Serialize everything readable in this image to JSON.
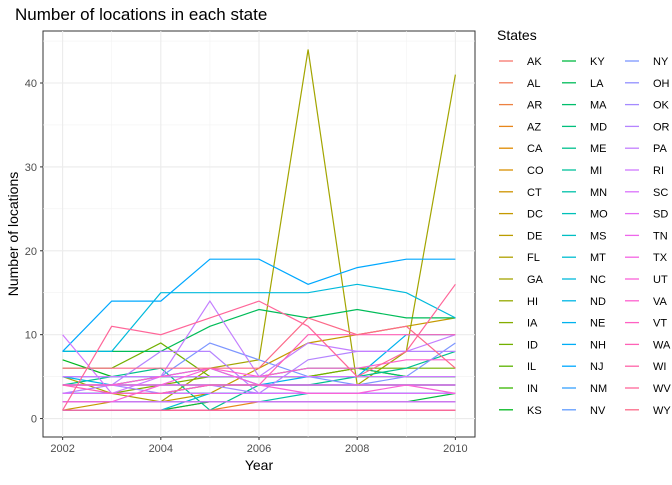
{
  "chart_data": {
    "type": "line",
    "title": "Number of locations in each state",
    "xlabel": "Year",
    "ylabel": "Number of locations",
    "xlim": [
      2002,
      2010
    ],
    "ylim": [
      0,
      44
    ],
    "x_ticks": [
      2002,
      2004,
      2006,
      2008,
      2010
    ],
    "y_ticks": [
      0,
      10,
      20,
      30,
      40
    ],
    "grid": true,
    "legend_title": "States",
    "legend_position": "right",
    "x": [
      2002,
      2003,
      2004,
      2005,
      2006,
      2007,
      2008,
      2009,
      2010
    ],
    "series": [
      {
        "name": "AK",
        "color": "#F8766D",
        "values": [
          1,
          1,
          1,
          1,
          1,
          1,
          1,
          1,
          1
        ]
      },
      {
        "name": "AL",
        "color": "#F37B59",
        "values": [
          1,
          1,
          1,
          1,
          1,
          1,
          1,
          1,
          1
        ]
      },
      {
        "name": "AR",
        "color": "#ED8141",
        "values": [
          1,
          1,
          1,
          1,
          1,
          1,
          1,
          1,
          1
        ]
      },
      {
        "name": "AZ",
        "color": "#E7861B",
        "values": [
          1,
          1,
          1,
          1,
          2,
          2,
          2,
          2,
          2
        ]
      },
      {
        "name": "CA",
        "color": "#E08B00",
        "values": [
          1,
          1,
          1,
          2,
          2,
          2,
          2,
          2,
          2
        ]
      },
      {
        "name": "CO",
        "color": "#D89000",
        "values": [
          1,
          1,
          1,
          1,
          1,
          1,
          1,
          1,
          1
        ]
      },
      {
        "name": "CT",
        "color": "#CF9400",
        "values": [
          1,
          1,
          1,
          1,
          1,
          1,
          1,
          1,
          1
        ]
      },
      {
        "name": "DC",
        "color": "#C59900",
        "values": [
          1,
          2,
          2,
          3,
          6,
          9,
          10,
          11,
          12
        ]
      },
      {
        "name": "DE",
        "color": "#BB9D00",
        "values": [
          1,
          1,
          1,
          1,
          1,
          1,
          1,
          1,
          1
        ]
      },
      {
        "name": "FL",
        "color": "#AFA100",
        "values": [
          5,
          3,
          2,
          2,
          2,
          2,
          2,
          2,
          2
        ]
      },
      {
        "name": "GA",
        "color": "#A3A500",
        "values": [
          2,
          2,
          2,
          6,
          7,
          44,
          4,
          8,
          41
        ]
      },
      {
        "name": "HI",
        "color": "#95A900",
        "values": [
          2,
          2,
          2,
          2,
          2,
          2,
          2,
          2,
          2
        ]
      },
      {
        "name": "IA",
        "color": "#85AD00",
        "values": [
          3,
          3,
          4,
          5,
          5,
          5,
          6,
          5,
          5
        ]
      },
      {
        "name": "ID",
        "color": "#72B000",
        "values": [
          6,
          6,
          9,
          5,
          5,
          5,
          6,
          6,
          6
        ]
      },
      {
        "name": "IL",
        "color": "#5BB300",
        "values": [
          4,
          4,
          4,
          4,
          4,
          4,
          4,
          4,
          4
        ]
      },
      {
        "name": "IN",
        "color": "#39B600",
        "values": [
          3,
          3,
          3,
          3,
          3,
          3,
          3,
          3,
          3
        ]
      },
      {
        "name": "KS",
        "color": "#00B81F",
        "values": [
          7,
          5,
          5,
          5,
          5,
          5,
          5,
          5,
          5
        ]
      },
      {
        "name": "KY",
        "color": "#00BA42",
        "values": [
          1,
          1,
          1,
          2,
          2,
          2,
          2,
          2,
          3
        ]
      },
      {
        "name": "LA",
        "color": "#00BC59",
        "values": [
          8,
          8,
          8,
          11,
          13,
          12,
          13,
          12,
          12
        ]
      },
      {
        "name": "MA",
        "color": "#00BE6C",
        "values": [
          4,
          4,
          5,
          5,
          5,
          6,
          6,
          5,
          5
        ]
      },
      {
        "name": "MD",
        "color": "#00BF7D",
        "values": [
          3,
          3,
          3,
          3,
          3,
          3,
          3,
          3,
          3
        ]
      },
      {
        "name": "ME",
        "color": "#00C08D",
        "values": [
          4,
          5,
          6,
          1,
          4,
          4,
          5,
          6,
          8
        ]
      },
      {
        "name": "MI",
        "color": "#00C19C",
        "values": [
          2,
          2,
          2,
          2,
          2,
          2,
          2,
          2,
          2
        ]
      },
      {
        "name": "MN",
        "color": "#00C1AA",
        "values": [
          2,
          2,
          2,
          2,
          2,
          3,
          3,
          3,
          3
        ]
      },
      {
        "name": "MO",
        "color": "#00C0B8",
        "values": [
          3,
          3,
          3,
          4,
          4,
          4,
          4,
          4,
          4
        ]
      },
      {
        "name": "MS",
        "color": "#00BFC4",
        "values": [
          3,
          3,
          3,
          3,
          3,
          3,
          3,
          3,
          3
        ]
      },
      {
        "name": "MT",
        "color": "#00BDD0",
        "values": [
          1,
          1,
          1,
          3,
          3,
          3,
          3,
          3,
          3
        ]
      },
      {
        "name": "NC",
        "color": "#00BADB",
        "values": [
          8,
          8,
          15,
          15,
          15,
          15,
          16,
          15,
          12
        ]
      },
      {
        "name": "ND",
        "color": "#00B6E5",
        "values": [
          5,
          4,
          4,
          4,
          4,
          4,
          4,
          4,
          4
        ]
      },
      {
        "name": "NE",
        "color": "#00B2EE",
        "values": [
          5,
          5,
          5,
          6,
          4,
          5,
          5,
          10,
          10
        ]
      },
      {
        "name": "NH",
        "color": "#00ADF6",
        "values": [
          4,
          4,
          4,
          4,
          4,
          4,
          4,
          4,
          4
        ]
      },
      {
        "name": "NJ",
        "color": "#00A8FF",
        "values": [
          8,
          14,
          14,
          19,
          19,
          16,
          18,
          19,
          19
        ]
      },
      {
        "name": "NM",
        "color": "#35A2FF",
        "values": [
          3,
          3,
          3,
          3,
          3,
          3,
          3,
          3,
          3
        ]
      },
      {
        "name": "NV",
        "color": "#619CFF",
        "values": [
          2,
          2,
          2,
          2,
          2,
          2,
          2,
          2,
          2
        ]
      },
      {
        "name": "NY",
        "color": "#7D96FF",
        "values": [
          5,
          5,
          5,
          9,
          7,
          5,
          4,
          5,
          9
        ]
      },
      {
        "name": "OH",
        "color": "#9290FF",
        "values": [
          2,
          2,
          2,
          2,
          2,
          2,
          2,
          2,
          2
        ]
      },
      {
        "name": "OK",
        "color": "#A58AFF",
        "values": [
          4,
          4,
          3,
          4,
          3,
          3,
          3,
          3,
          3
        ]
      },
      {
        "name": "OR",
        "color": "#B584FF",
        "values": [
          3,
          4,
          8,
          8,
          3,
          7,
          8,
          8,
          8
        ]
      },
      {
        "name": "PA",
        "color": "#C37EFF",
        "values": [
          5,
          5,
          5,
          14,
          5,
          9,
          8,
          8,
          10
        ]
      },
      {
        "name": "RI",
        "color": "#D078FF",
        "values": [
          10,
          3,
          5,
          5,
          5,
          5,
          5,
          5,
          5
        ]
      },
      {
        "name": "SC",
        "color": "#DB72FB",
        "values": [
          3,
          3,
          3,
          3,
          3,
          3,
          3,
          3,
          3
        ]
      },
      {
        "name": "SD",
        "color": "#E56DF4",
        "values": [
          2,
          2,
          2,
          2,
          2,
          2,
          2,
          2,
          2
        ]
      },
      {
        "name": "TN",
        "color": "#EE67EB",
        "values": [
          4,
          4,
          4,
          4,
          4,
          4,
          4,
          4,
          4
        ]
      },
      {
        "name": "TX",
        "color": "#F564E3",
        "values": [
          4,
          4,
          4,
          4,
          4,
          4,
          4,
          4,
          4
        ]
      },
      {
        "name": "UT",
        "color": "#FA62D8",
        "values": [
          2,
          2,
          4,
          6,
          4,
          3,
          3,
          4,
          3
        ]
      },
      {
        "name": "VA",
        "color": "#FE61CF",
        "values": [
          4,
          4,
          5,
          6,
          5,
          6,
          6,
          7,
          7
        ]
      },
      {
        "name": "VT",
        "color": "#FF61C3",
        "values": [
          1,
          1,
          1,
          1,
          1,
          1,
          1,
          1,
          1
        ]
      },
      {
        "name": "WA",
        "color": "#FF62B6",
        "values": [
          4,
          3,
          3,
          4,
          4,
          10,
          10,
          10,
          10
        ]
      },
      {
        "name": "WI",
        "color": "#FF64A8",
        "values": [
          1,
          1,
          1,
          1,
          1,
          1,
          1,
          1,
          1
        ]
      },
      {
        "name": "WV",
        "color": "#FF6699",
        "values": [
          1,
          11,
          10,
          12,
          14,
          11,
          5,
          8,
          16
        ]
      },
      {
        "name": "WY",
        "color": "#FC6A89",
        "values": [
          6,
          6,
          6,
          6,
          6,
          12,
          10,
          11,
          6
        ]
      }
    ]
  }
}
